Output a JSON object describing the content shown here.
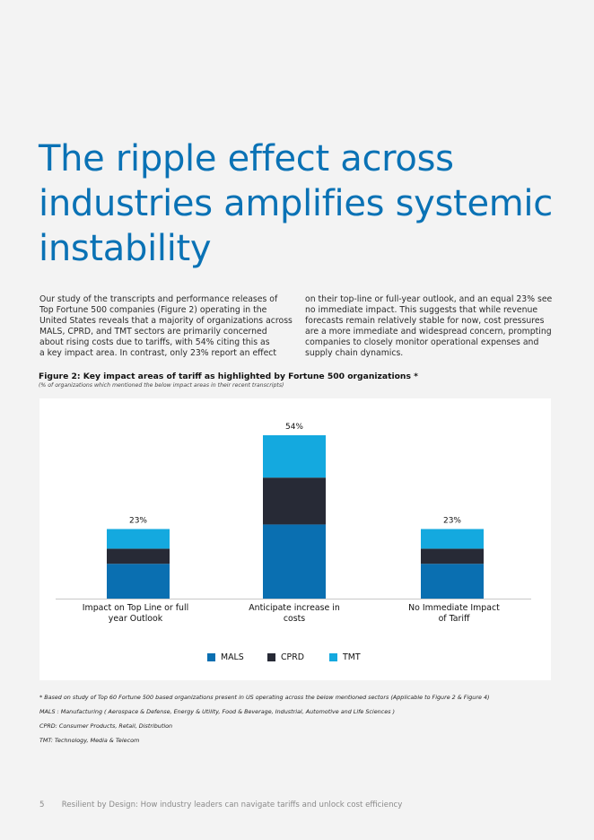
{
  "title_lines": [
    "The ripple effect across",
    "industries amplifies systemic",
    "instability"
  ],
  "body_left": [
    "Our study of the transcripts and performance releases of",
    "Top Fortune 500 companies (Figure 2) operating in the",
    "United States reveals that a majority of organizations across",
    "MALS, CPRD, and TMT sectors are primarily concerned",
    "about rising costs due to tariffs, with 54% citing this as",
    "a key impact area. In contrast, only 23% report an effect"
  ],
  "body_right": [
    "on their top-line or full-year outlook, and an equal 23% see",
    "no immediate impact. This suggests that while revenue",
    "forecasts remain relatively stable for now, cost pressures",
    "are a more immediate and widespread concern, prompting",
    "companies to closely monitor operational expenses and",
    "supply chain dynamics."
  ],
  "figure": {
    "title": "Figure 2: Key impact areas of tariff as highlighted by Fortune 500 organizations *",
    "subtitle": "(% of organizations which mentioned the below impact areas in their recent transcripts)"
  },
  "colors": {
    "MALS": "#0a6fb1",
    "CPRD": "#272a36",
    "TMT": "#14a9df",
    "axis": "#c8c8c8"
  },
  "chart_data": {
    "type": "bar",
    "stacked": true,
    "categories": [
      [
        "Impact on Top Line or full",
        "year Outlook"
      ],
      [
        "Anticipate increase in",
        "costs"
      ],
      [
        "No Immediate Impact",
        "of Tariff"
      ]
    ],
    "series": [
      {
        "name": "MALS",
        "values": [
          11.5,
          24.5,
          11.5
        ]
      },
      {
        "name": "CPRD",
        "values": [
          5.0,
          15.5,
          5.0
        ]
      },
      {
        "name": "TMT",
        "values": [
          6.5,
          14.0,
          6.5
        ]
      }
    ],
    "totals": [
      23,
      54,
      23
    ],
    "data_labels": [
      "23%",
      "54%",
      "23%"
    ],
    "ylim": [
      0,
      54
    ],
    "legend": [
      "MALS",
      "CPRD",
      "TMT"
    ],
    "legend_position": "bottom"
  },
  "footnotes": [
    "* Based on study of Top 60 Fortune 500 based organizations present in US operating across the below mentioned sectors (Applicable to Figure 2 & Figure 4)",
    "MALS : Manufacturing ( Aerospace & Defense, Energy & Utility, Food & Beverage, Industrial, Automotive and Life Sciences )",
    "CPRD: Consumer Products, Retail, Distribution",
    "TMT: Technology, Media & Telecom"
  ],
  "footer": {
    "page": "5",
    "text": "Resilient by Design: How industry leaders can navigate tariffs and unlock cost efficiency"
  }
}
